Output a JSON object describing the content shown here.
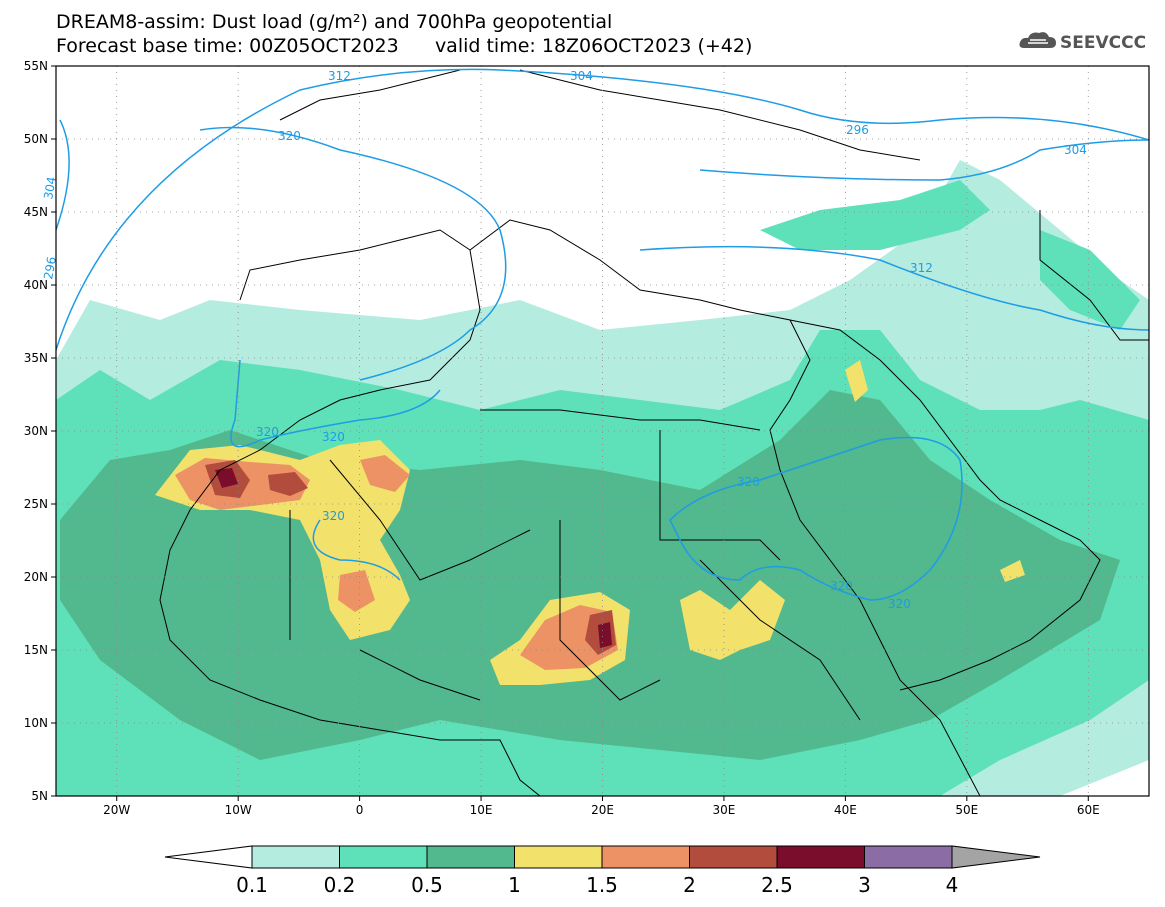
{
  "title": {
    "line1": "DREAM8-assim: Dust load (g/m²) and 700hPa geopotential",
    "line2_base": "Forecast base time: 00Z05OCT2023",
    "line2_valid": "valid time: 18Z06OCT2023 (+42)"
  },
  "logo": {
    "text": "SEEVCCC",
    "icon": "cloud-icon"
  },
  "map": {
    "lon_labels": [
      "20W",
      "10W",
      "0",
      "10E",
      "20E",
      "30E",
      "40E",
      "50E",
      "60E"
    ],
    "lat_labels": [
      "55N",
      "50N",
      "45N",
      "40N",
      "35N",
      "30N",
      "25N",
      "20N",
      "15N",
      "10N",
      "5N"
    ],
    "lon_range": [
      -25,
      65
    ],
    "lat_range": [
      5,
      55
    ],
    "grid": "dotted"
  },
  "contours": {
    "variable": "700hPa geopotential (dam)",
    "labels": [
      "312",
      "304",
      "296",
      "320",
      "304",
      "312",
      "320",
      "320",
      "320",
      "320",
      "320",
      "320",
      "304",
      "296"
    ]
  },
  "colorbar": {
    "levels": [
      "0.1",
      "0.2",
      "0.5",
      "1",
      "1.5",
      "2",
      "2.5",
      "3",
      "4"
    ],
    "colors": [
      "#ffffff",
      "#b4ece0",
      "#5ee0b8",
      "#52b88e",
      "#f2e26c",
      "#ec9264",
      "#b24c3c",
      "#7a0c2c",
      "#8c6ca4",
      "#a4a4a4"
    ]
  }
}
